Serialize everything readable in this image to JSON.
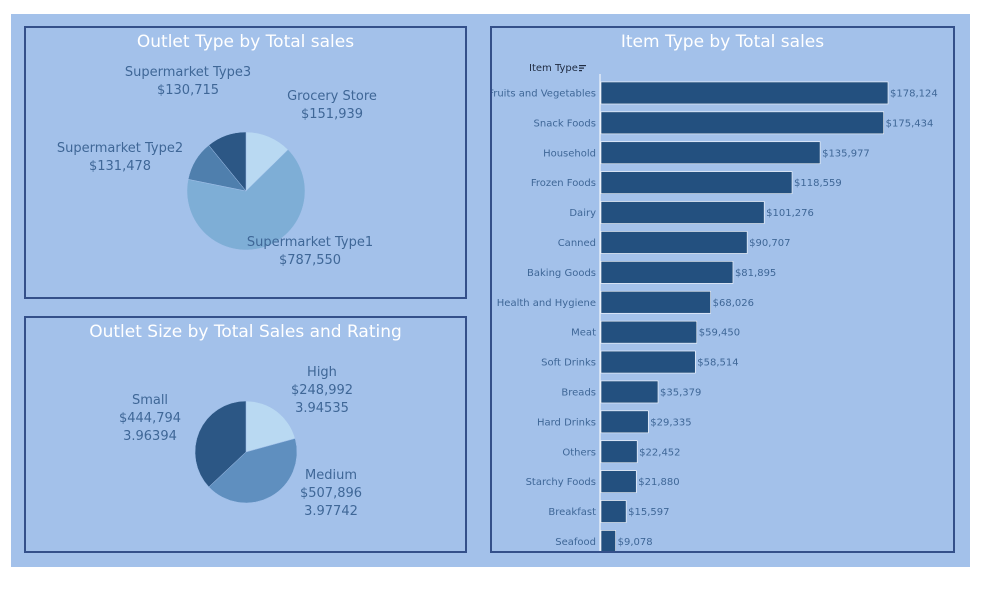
{
  "chart_data": [
    {
      "type": "pie",
      "title": "Outlet Type by Total sales",
      "slices": [
        {
          "label": "Grocery Store",
          "value": 151939,
          "value_label": "$151,939",
          "color": "#b9d9f2"
        },
        {
          "label": "Supermarket Type1",
          "value": 787550,
          "value_label": "$787,550",
          "color": "#7eaed6"
        },
        {
          "label": "Supermarket Type2",
          "value": 131478,
          "value_label": "$131,478",
          "color": "#4f7fad"
        },
        {
          "label": "Supermarket Type3",
          "value": 130715,
          "value_label": "$130,715",
          "color": "#2c5785"
        }
      ]
    },
    {
      "type": "pie",
      "title": "Outlet Size by Total Sales and Rating",
      "slices": [
        {
          "label": "High",
          "value": 248992,
          "value_label": "$248,992",
          "rating": "3.94535",
          "color": "#b9d9f2"
        },
        {
          "label": "Medium",
          "value": 507896,
          "value_label": "$507,896",
          "rating": "3.97742",
          "color": "#5f8fbf"
        },
        {
          "label": "Small",
          "value": 444794,
          "value_label": "$444,794",
          "rating": "3.96394",
          "color": "#2c5785"
        }
      ]
    },
    {
      "type": "bar",
      "orientation": "horizontal",
      "title": "Item Type  by Total sales",
      "axis_header": "Item Type",
      "bar_color": "#23507f",
      "categories": [
        "Fruits and Vegetables",
        "Snack Foods",
        "Household",
        "Frozen Foods",
        "Dairy",
        "Canned",
        "Baking Goods",
        "Health and Hygiene",
        "Meat",
        "Soft Drinks",
        "Breads",
        "Hard Drinks",
        "Others",
        "Starchy Foods",
        "Breakfast",
        "Seafood"
      ],
      "values": [
        178124,
        175434,
        135977,
        118559,
        101276,
        90707,
        81895,
        68026,
        59450,
        58514,
        35379,
        29335,
        22452,
        21880,
        15597,
        9078
      ],
      "value_labels": [
        "$178,124",
        "$175,434",
        "$135,977",
        "$118,559",
        "$101,276",
        "$90,707",
        "$81,895",
        "$68,026",
        "$59,450",
        "$58,514",
        "$35,379",
        "$29,335",
        "$22,452",
        "$21,880",
        "$15,597",
        "$9,078"
      ]
    }
  ]
}
